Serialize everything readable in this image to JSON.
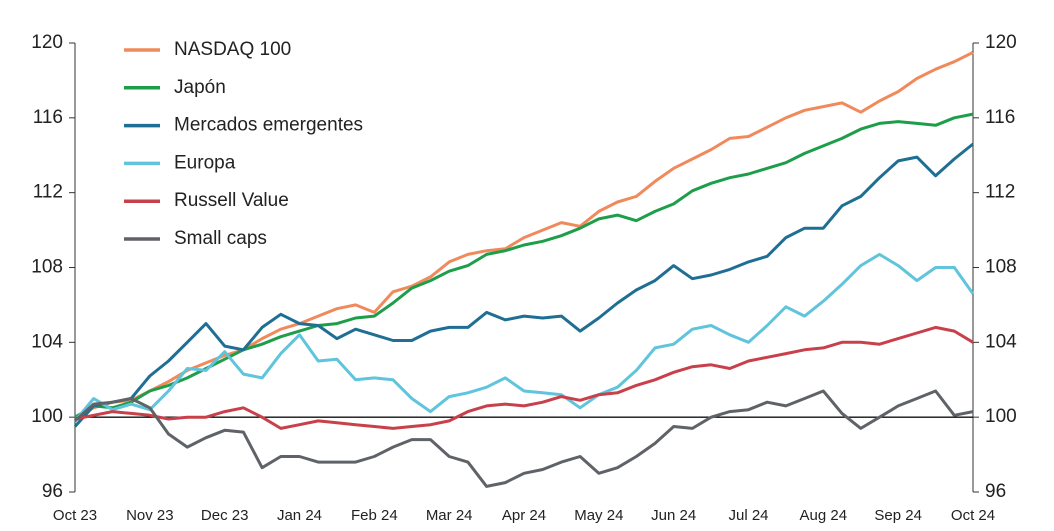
{
  "chart_data": {
    "type": "line",
    "categories": [
      "Oct 23",
      null,
      null,
      null,
      "Nov 23",
      null,
      null,
      null,
      "Dec 23",
      null,
      null,
      null,
      "Jan 24",
      null,
      null,
      null,
      "Feb 24",
      null,
      null,
      null,
      "Mar 24",
      null,
      null,
      null,
      "Apr 24",
      null,
      null,
      null,
      "May 24",
      null,
      null,
      null,
      "Jun 24",
      null,
      null,
      null,
      "Jul 24",
      null,
      null,
      null,
      "Aug 24",
      null,
      null,
      null,
      "Sep 24",
      null,
      null,
      null,
      "Oct 24"
    ],
    "series": [
      {
        "name": "NASDAQ 100",
        "color": "#f08a5d",
        "values": [
          100,
          100.5,
          100.8,
          100.9,
          101.4,
          101.9,
          102.5,
          102.9,
          103.3,
          103.6,
          104.2,
          104.7,
          105.0,
          105.4,
          105.8,
          106.0,
          105.6,
          106.7,
          107.0,
          107.5,
          108.3,
          108.7,
          108.9,
          109.0,
          109.6,
          110.0,
          110.4,
          110.2,
          111.0,
          111.5,
          111.8,
          112.6,
          113.3,
          113.8,
          114.3,
          114.9,
          115.0,
          115.5,
          116.0,
          116.4,
          116.6,
          116.8,
          116.3,
          116.9,
          117.4,
          118.1,
          118.6,
          119.0,
          119.5
        ]
      },
      {
        "name": "Japón",
        "color": "#1e9e4a",
        "values": [
          100,
          100.6,
          100.5,
          100.8,
          101.4,
          101.7,
          102.1,
          102.6,
          103.1,
          103.6,
          103.9,
          104.3,
          104.6,
          104.9,
          105.0,
          105.3,
          105.4,
          106.1,
          106.9,
          107.3,
          107.8,
          108.1,
          108.7,
          108.9,
          109.2,
          109.4,
          109.7,
          110.1,
          110.6,
          110.8,
          110.5,
          111.0,
          111.4,
          112.1,
          112.5,
          112.8,
          113.0,
          113.3,
          113.6,
          114.1,
          114.5,
          114.9,
          115.4,
          115.7,
          115.8,
          115.7,
          115.6,
          116.0,
          116.2
        ]
      },
      {
        "name": "Mercados emergentes",
        "color": "#1f6e94",
        "values": [
          99.5,
          100.6,
          100.8,
          101.0,
          102.2,
          103.0,
          104.0,
          105.0,
          103.8,
          103.6,
          104.8,
          105.5,
          105.0,
          104.9,
          104.2,
          104.7,
          104.4,
          104.1,
          104.1,
          104.6,
          104.8,
          104.8,
          105.6,
          105.2,
          105.4,
          105.3,
          105.4,
          104.6,
          105.3,
          106.1,
          106.8,
          107.3,
          108.1,
          107.4,
          107.6,
          107.9,
          108.3,
          108.6,
          109.6,
          110.1,
          110.1,
          111.3,
          111.8,
          112.8,
          113.7,
          113.9,
          112.9,
          113.8,
          114.6
        ]
      },
      {
        "name": "Europa",
        "color": "#5fc4dc",
        "values": [
          99.8,
          101.0,
          100.4,
          100.7,
          100.4,
          101.4,
          102.6,
          102.5,
          103.5,
          102.3,
          102.1,
          103.4,
          104.4,
          103.0,
          103.1,
          102.0,
          102.1,
          102.0,
          101.0,
          100.3,
          101.1,
          101.3,
          101.6,
          102.1,
          101.4,
          101.3,
          101.2,
          100.5,
          101.2,
          101.6,
          102.5,
          103.7,
          103.9,
          104.7,
          104.9,
          104.4,
          104.0,
          104.9,
          105.9,
          105.4,
          106.2,
          107.1,
          108.1,
          108.7,
          108.1,
          107.3,
          108.0,
          108.0,
          106.6
        ]
      },
      {
        "name": "Russell Value",
        "color": "#c8404a",
        "values": [
          99.9,
          100.1,
          100.3,
          100.2,
          100.1,
          99.9,
          100.0,
          100.0,
          100.3,
          100.5,
          100.0,
          99.4,
          99.6,
          99.8,
          99.7,
          99.6,
          99.5,
          99.4,
          99.5,
          99.6,
          99.8,
          100.3,
          100.6,
          100.7,
          100.6,
          100.8,
          101.1,
          100.9,
          101.2,
          101.3,
          101.7,
          102.0,
          102.4,
          102.7,
          102.8,
          102.6,
          103.0,
          103.2,
          103.4,
          103.6,
          103.7,
          104.0,
          104.0,
          103.9,
          104.2,
          104.5,
          104.8,
          104.6,
          104.0
        ]
      },
      {
        "name": "Small caps",
        "color": "#5f6368",
        "values": [
          99.8,
          100.7,
          100.8,
          101.0,
          100.5,
          99.1,
          98.4,
          98.9,
          99.3,
          99.2,
          97.3,
          97.9,
          97.9,
          97.6,
          97.6,
          97.6,
          97.9,
          98.4,
          98.8,
          98.8,
          97.9,
          97.6,
          96.3,
          96.5,
          97.0,
          97.2,
          97.6,
          97.9,
          97.0,
          97.3,
          97.9,
          98.6,
          99.5,
          99.4,
          100.0,
          100.3,
          100.4,
          100.8,
          100.6,
          101.0,
          101.4,
          100.2,
          99.4,
          100.0,
          100.6,
          101.0,
          101.4,
          100.1,
          100.3
        ]
      }
    ],
    "ylim": [
      96,
      120
    ],
    "yticks": [
      96,
      100,
      104,
      108,
      112,
      116,
      120
    ],
    "y2lim": [
      96,
      120
    ],
    "y2ticks": [
      96,
      100,
      104,
      108,
      112,
      116,
      120
    ],
    "hline": 100,
    "legend": "upper left",
    "grid": false
  }
}
